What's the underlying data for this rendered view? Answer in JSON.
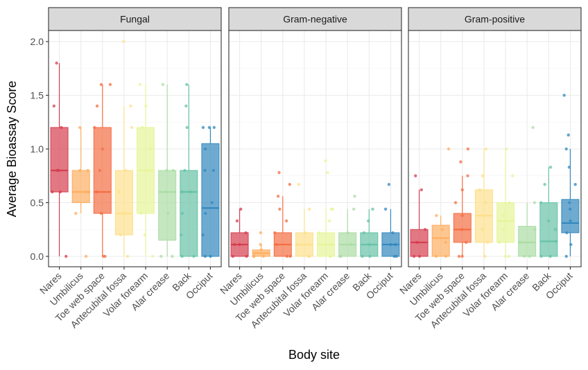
{
  "chart_data": {
    "type": "boxplot",
    "xlabel": "Body site",
    "ylabel": "Average Bioassay Score",
    "ylim": [
      -0.1,
      2.1
    ],
    "yticks": [
      0.0,
      0.5,
      1.0,
      1.5,
      2.0
    ],
    "ytick_labels": [
      "0.0",
      "0.5",
      "1.0",
      "1.5",
      "2.0"
    ],
    "grid": true,
    "legend": "none",
    "categories": [
      "Nares",
      "Umbilicus",
      "Toe web space",
      "Antecubital fossa",
      "Volar forearm",
      "Alar crease",
      "Back",
      "Occiput"
    ],
    "colors": [
      "#d53e4f",
      "#fdae61",
      "#f46d43",
      "#fee08b",
      "#e6f598",
      "#abdda4",
      "#66c2a5",
      "#3288bd"
    ],
    "panels": [
      {
        "title": "Fungal",
        "boxes": [
          {
            "min": 0.0,
            "q1": 0.6,
            "median": 0.8,
            "q3": 1.2,
            "max": 1.8,
            "points": [
              0.0,
              0.6,
              0.6,
              0.8,
              0.8,
              1.2,
              1.4,
              1.8
            ]
          },
          {
            "min": 0.4,
            "q1": 0.5,
            "median": 0.6,
            "q3": 0.8,
            "max": 1.2,
            "points": [
              0.0,
              0.4,
              0.6,
              0.6,
              0.8,
              0.8,
              1.2
            ]
          },
          {
            "min": 0.0,
            "q1": 0.4,
            "median": 0.6,
            "q3": 1.2,
            "max": 1.6,
            "points": [
              0.0,
              0.0,
              0.4,
              0.6,
              0.8,
              1.0,
              1.2,
              1.4,
              1.6,
              1.6
            ]
          },
          {
            "min": 0.0,
            "q1": 0.2,
            "median": 0.4,
            "q3": 0.8,
            "max": 1.4,
            "points": [
              0.0,
              0.2,
              0.4,
              0.6,
              0.8,
              1.2,
              1.4,
              2.0
            ]
          },
          {
            "min": 0.0,
            "q1": 0.4,
            "median": 0.8,
            "q3": 1.2,
            "max": 1.6,
            "points": [
              0.0,
              0.2,
              0.4,
              0.8,
              1.0,
              1.2,
              1.4,
              1.6
            ]
          },
          {
            "min": 0.0,
            "q1": 0.15,
            "median": 0.6,
            "q3": 0.8,
            "max": 1.6,
            "points": [
              0.0,
              0.0,
              0.4,
              0.6,
              0.8,
              0.8,
              1.6
            ]
          },
          {
            "min": 0.0,
            "q1": 0.0,
            "median": 0.6,
            "q3": 0.8,
            "max": 1.6,
            "points": [
              0.0,
              0.0,
              0.2,
              0.4,
              0.6,
              0.6,
              0.8,
              1.2,
              1.4,
              1.6
            ]
          },
          {
            "min": 0.0,
            "q1": 0.0,
            "median": 0.45,
            "q3": 1.05,
            "max": 1.2,
            "points": [
              0.0,
              0.0,
              0.2,
              0.4,
              0.5,
              0.8,
              0.8,
              1.0,
              1.2,
              1.2,
              1.2
            ]
          }
        ]
      },
      {
        "title": "Gram-negative",
        "boxes": [
          {
            "min": 0.0,
            "q1": 0.0,
            "median": 0.11,
            "q3": 0.22,
            "max": 0.44,
            "points": [
              0.0,
              0.0,
              0.11,
              0.11,
              0.22,
              0.33,
              0.44
            ]
          },
          {
            "min": 0.0,
            "q1": 0.0,
            "median": 0.03,
            "q3": 0.06,
            "max": 0.11,
            "points": [
              0.0,
              0.0,
              0.0,
              0.06,
              0.11,
              0.22
            ]
          },
          {
            "min": 0.0,
            "q1": 0.0,
            "median": 0.11,
            "q3": 0.22,
            "max": 0.56,
            "points": [
              0.0,
              0.0,
              0.11,
              0.22,
              0.33,
              0.44,
              0.56,
              0.67,
              0.78
            ]
          },
          {
            "min": 0.0,
            "q1": 0.0,
            "median": 0.11,
            "q3": 0.22,
            "max": 0.44,
            "points": [
              0.0,
              0.0,
              0.11,
              0.22,
              0.44,
              0.67
            ]
          },
          {
            "min": 0.0,
            "q1": 0.0,
            "median": 0.11,
            "q3": 0.22,
            "max": 0.44,
            "points": [
              0.0,
              0.0,
              0.11,
              0.22,
              0.33,
              0.44,
              0.44,
              0.78,
              0.89
            ]
          },
          {
            "min": 0.0,
            "q1": 0.0,
            "median": 0.11,
            "q3": 0.22,
            "max": 0.44,
            "points": [
              0.0,
              0.0,
              0.11,
              0.22,
              0.44,
              0.56
            ]
          },
          {
            "min": 0.0,
            "q1": 0.0,
            "median": 0.11,
            "q3": 0.22,
            "max": 0.44,
            "points": [
              0.0,
              0.0,
              0.11,
              0.22,
              0.33,
              0.44
            ]
          },
          {
            "min": 0.0,
            "q1": 0.0,
            "median": 0.11,
            "q3": 0.22,
            "max": 0.44,
            "points": [
              0.0,
              0.0,
              0.11,
              0.11,
              0.22,
              0.44,
              0.67
            ]
          }
        ]
      },
      {
        "title": "Gram-positive",
        "boxes": [
          {
            "min": 0.0,
            "q1": 0.0,
            "median": 0.13,
            "q3": 0.25,
            "max": 0.62,
            "points": [
              0.0,
              0.0,
              0.13,
              0.25,
              0.62,
              0.75
            ]
          },
          {
            "min": 0.0,
            "q1": 0.0,
            "median": 0.17,
            "q3": 0.29,
            "max": 0.38,
            "points": [
              0.0,
              0.0,
              0.13,
              0.25,
              0.38,
              1.0
            ]
          },
          {
            "min": 0.0,
            "q1": 0.13,
            "median": 0.25,
            "q3": 0.4,
            "max": 0.75,
            "points": [
              0.0,
              0.0,
              0.13,
              0.25,
              0.38,
              0.5,
              0.62,
              0.75,
              0.88,
              1.0
            ]
          },
          {
            "min": 0.0,
            "q1": 0.13,
            "median": 0.38,
            "q3": 0.62,
            "max": 1.0,
            "points": [
              0.0,
              0.13,
              0.25,
              0.38,
              0.5,
              0.62,
              0.75,
              1.0
            ]
          },
          {
            "min": 0.0,
            "q1": 0.13,
            "median": 0.33,
            "q3": 0.5,
            "max": 1.0,
            "points": [
              0.0,
              0.0,
              0.13,
              0.25,
              0.38,
              0.5,
              0.75,
              1.0
            ]
          },
          {
            "min": 0.0,
            "q1": 0.0,
            "median": 0.13,
            "q3": 0.28,
            "max": 0.5,
            "points": [
              0.0,
              0.0,
              0.13,
              0.25,
              0.5,
              1.2
            ]
          },
          {
            "min": 0.0,
            "q1": 0.0,
            "median": 0.14,
            "q3": 0.5,
            "max": 0.83,
            "points": [
              0.0,
              0.0,
              0.14,
              0.25,
              0.33,
              0.5,
              0.67,
              0.83
            ]
          },
          {
            "min": 0.0,
            "q1": 0.22,
            "median": 0.31,
            "q3": 0.53,
            "max": 1.0,
            "points": [
              0.0,
              0.11,
              0.22,
              0.33,
              0.44,
              0.5,
              0.67,
              0.83,
              1.0,
              1.13,
              1.5
            ]
          }
        ]
      }
    ]
  }
}
